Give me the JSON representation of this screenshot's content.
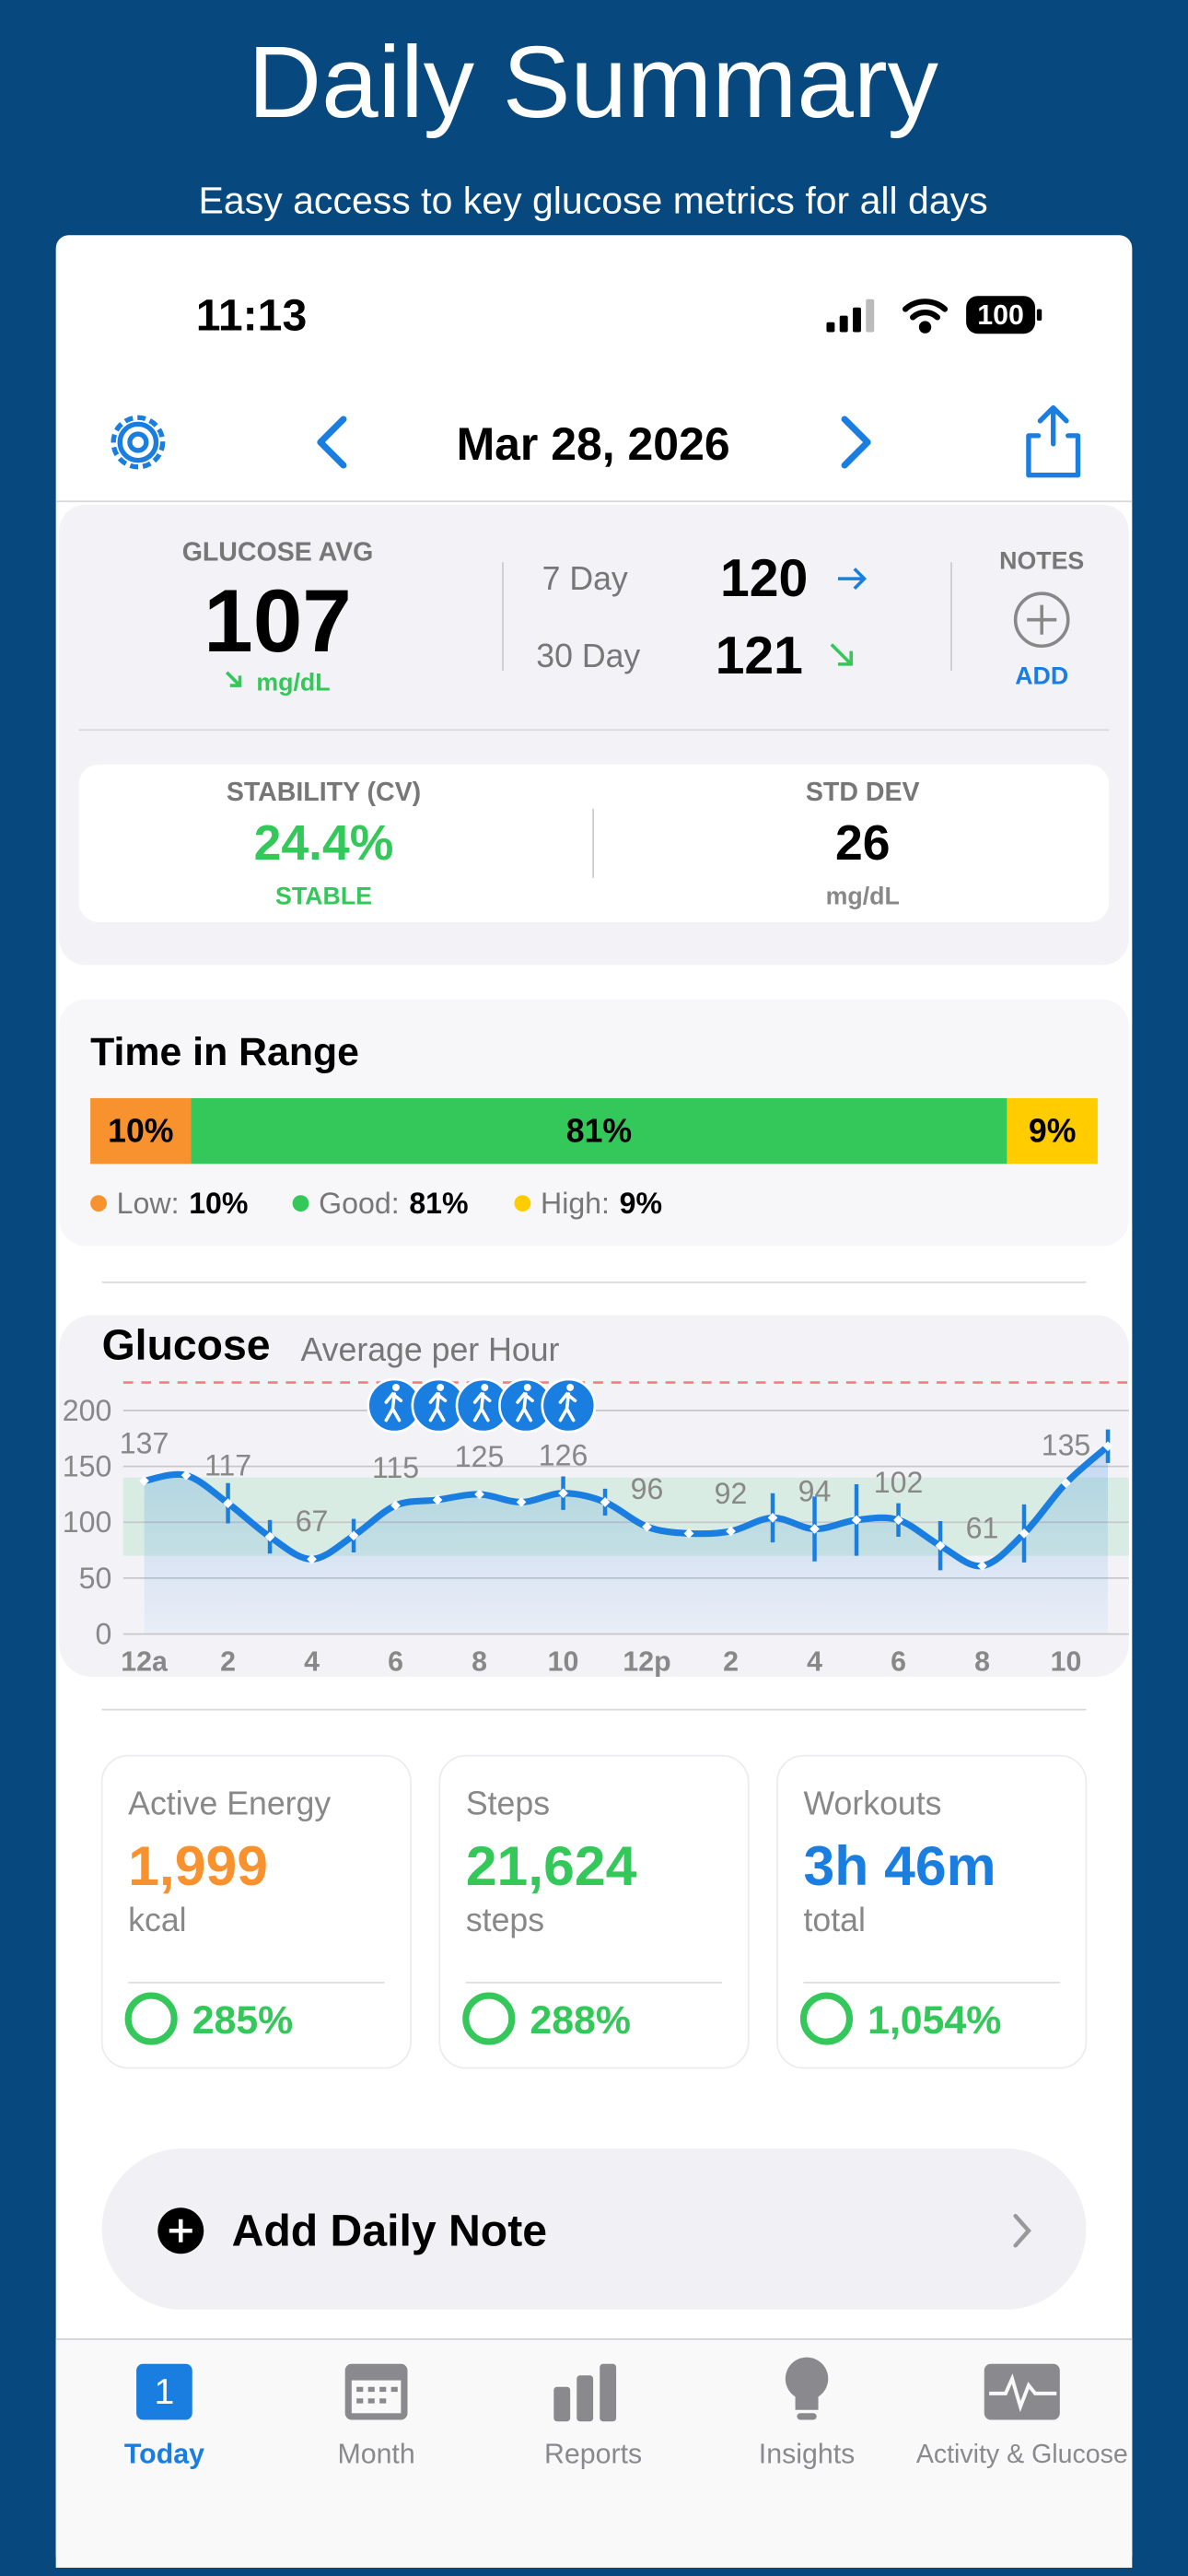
{
  "header": {
    "title": "Daily Summary",
    "subtitle": "Easy access to key glucose metrics for all days"
  },
  "status_bar": {
    "time": "11:13",
    "battery": "100"
  },
  "nav": {
    "date": "Mar 28, 2026"
  },
  "summary": {
    "avg_label": "GLUCOSE AVG",
    "avg_value": "107",
    "avg_unit": "mg/dL",
    "seven_day_label": "7 Day",
    "seven_day_value": "120",
    "thirty_day_label": "30 Day",
    "thirty_day_value": "121",
    "notes_label": "NOTES",
    "notes_action": "ADD"
  },
  "variability": {
    "cv_label": "STABILITY (CV)",
    "cv_value": "24.4%",
    "cv_status": "STABLE",
    "sd_label": "STD DEV",
    "sd_value": "26",
    "sd_unit": "mg/dL"
  },
  "time_in_range": {
    "title": "Time in Range",
    "categories": [
      "Low:",
      "Good:",
      "High:"
    ],
    "values": [
      10,
      81,
      9
    ],
    "value_labels": [
      "10%",
      "81%",
      "9%"
    ],
    "colors": [
      "#f7922e",
      "#34c759",
      "#ffcc00"
    ]
  },
  "glucose_chart": {
    "type": "line",
    "title": "Glucose",
    "subtitle": "Average per Hour",
    "color": "#1a7de0",
    "x": [
      0,
      1,
      2,
      3,
      4,
      5,
      6,
      7,
      8,
      9,
      10,
      11,
      12,
      13,
      14,
      15,
      16,
      17,
      18,
      19,
      20,
      21,
      22,
      23
    ],
    "values": [
      137,
      142,
      117,
      87,
      67,
      88,
      115,
      120,
      125,
      118,
      126,
      118,
      96,
      90,
      92,
      104,
      94,
      102,
      102,
      79,
      61,
      90,
      135,
      168
    ],
    "errors": [
      null,
      null,
      18,
      15,
      null,
      15,
      null,
      null,
      null,
      null,
      15,
      12,
      null,
      null,
      null,
      22,
      29,
      32,
      15,
      22,
      null,
      26,
      null,
      15
    ],
    "labeled": [
      0,
      2,
      4,
      6,
      8,
      10,
      12,
      14,
      16,
      18,
      20,
      22
    ],
    "xlim": [
      -0.5,
      23.5
    ],
    "xticks": [
      {
        "value": 0,
        "label": "12a"
      },
      2,
      4,
      6,
      8,
      10,
      {
        "value": 12,
        "label": "12p"
      },
      {
        "value": 14,
        "label": "2"
      },
      {
        "value": 16,
        "label": "4"
      },
      {
        "value": 18,
        "label": "6"
      },
      {
        "value": 20,
        "label": "8"
      },
      {
        "value": 22,
        "label": "10"
      }
    ],
    "ylim": [
      0,
      225
    ],
    "yticks": [
      0,
      50,
      100,
      150,
      200
    ],
    "target_range": [
      70,
      140
    ],
    "grid": true
  },
  "activity": [
    {
      "title": "Active Energy",
      "value": "1,999",
      "unit": "kcal",
      "goal": "285%",
      "color": "#f7922e"
    },
    {
      "title": "Steps",
      "value": "21,624",
      "unit": "steps",
      "goal": "288%",
      "color": "#34c759"
    },
    {
      "title": "Workouts",
      "value": "3h 46m",
      "unit": "total",
      "goal": "1,054%",
      "color": "#1a7de0"
    }
  ],
  "note_button": {
    "label": "Add Daily Note"
  },
  "tabs": {
    "today_icon": "1",
    "labels": [
      "Today",
      "Month",
      "Reports",
      "Insights",
      "Activity & Glucose"
    ]
  }
}
